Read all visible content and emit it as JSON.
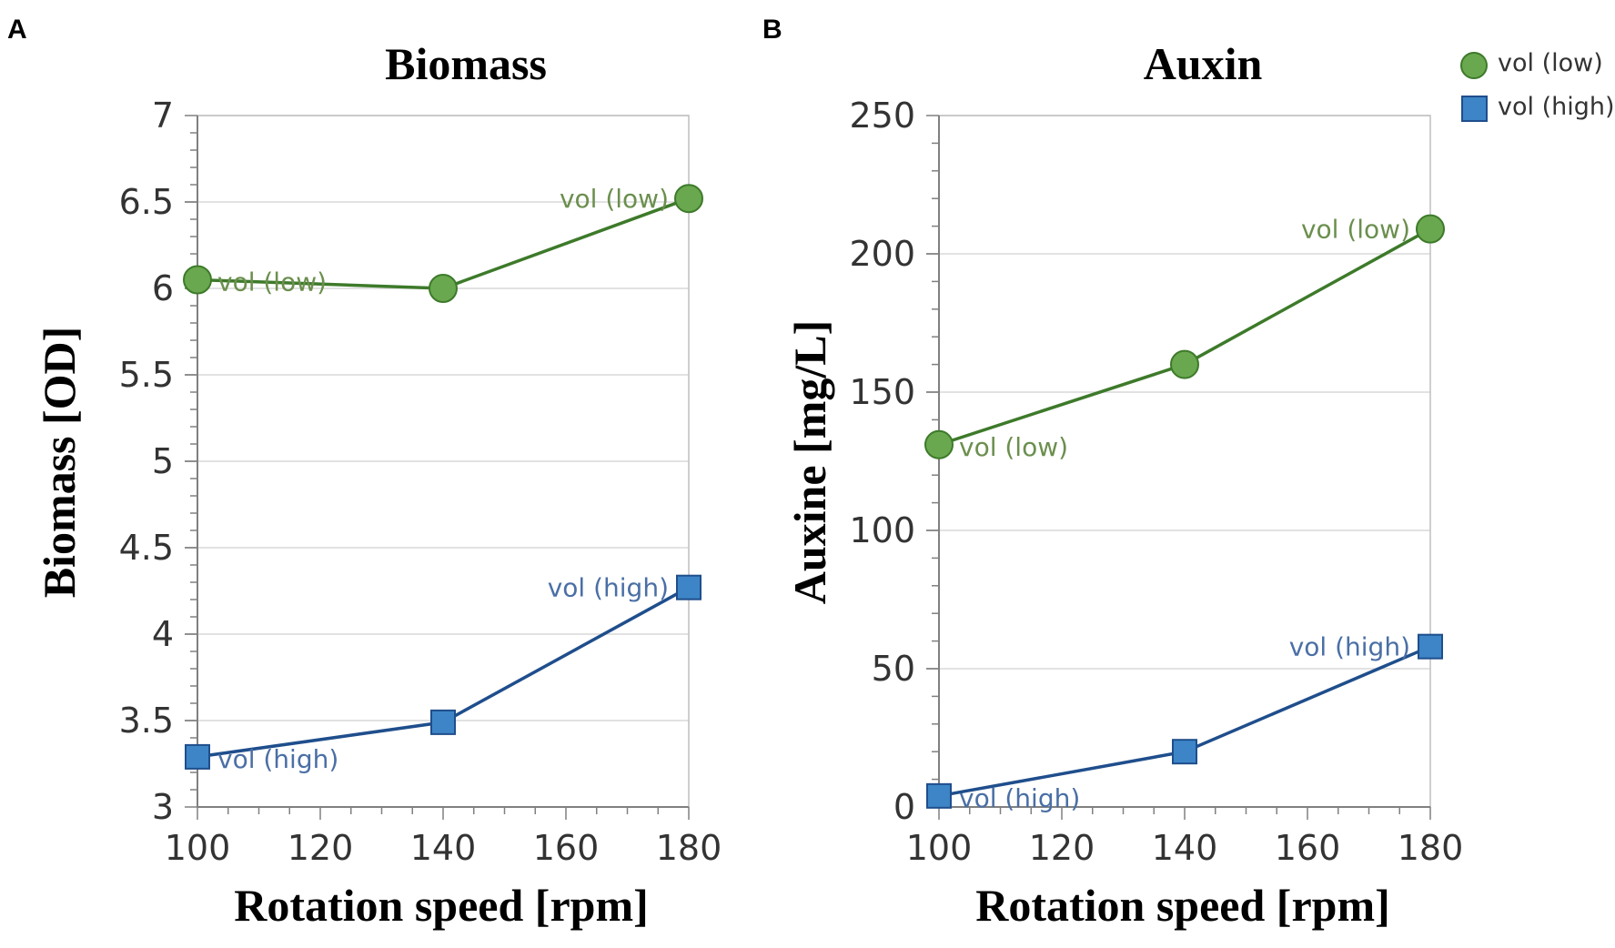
{
  "panels": [
    "A",
    "B"
  ],
  "legend": {
    "entries": [
      {
        "label": "vol (low)",
        "marker": "circle",
        "color": "#6aa84f",
        "stroke": "#3d7a2a"
      },
      {
        "label": "vol (high)",
        "marker": "square",
        "color": "#3d85c6",
        "stroke": "#1f4e8c"
      }
    ]
  },
  "chart_data": [
    {
      "type": "line",
      "panel": "A",
      "title": "Biomass",
      "xlabel": "Rotation speed [rpm]",
      "ylabel": "Biomass [OD]",
      "x": [
        100,
        140,
        180
      ],
      "xlim": [
        100,
        180
      ],
      "ylim": [
        3,
        7
      ],
      "xticks": [
        "100",
        "120",
        "140",
        "160",
        "180"
      ],
      "yticks": [
        "3",
        "3.5",
        "4",
        "4.5",
        "5",
        "5.5",
        "6",
        "6.5",
        "7"
      ],
      "grid": true,
      "series": [
        {
          "name": "vol (low)",
          "values": [
            6.05,
            6.0,
            6.52
          ],
          "color": "#3d7a2a",
          "marker": "circle",
          "data_labels": [
            "vol (low)",
            "",
            "vol (low)"
          ]
        },
        {
          "name": "vol (high)",
          "values": [
            3.29,
            3.49,
            4.27
          ],
          "color": "#1f4e8c",
          "marker": "square",
          "data_labels": [
            "vol (high)",
            "",
            "vol (high)"
          ]
        }
      ]
    },
    {
      "type": "line",
      "panel": "B",
      "title": "Auxin",
      "xlabel": "Rotation speed [rpm]",
      "ylabel": "Auxine [mg/L]",
      "x": [
        100,
        140,
        180
      ],
      "xlim": [
        100,
        180
      ],
      "ylim": [
        0,
        250
      ],
      "xticks": [
        "100",
        "120",
        "140",
        "160",
        "180"
      ],
      "yticks": [
        "0",
        "50",
        "100",
        "150",
        "200",
        "250"
      ],
      "grid": true,
      "series": [
        {
          "name": "vol (low)",
          "values": [
            131,
            160,
            209
          ],
          "color": "#3d7a2a",
          "marker": "circle",
          "data_labels": [
            "vol (low)",
            "",
            "vol (low)"
          ]
        },
        {
          "name": "vol (high)",
          "values": [
            4,
            20,
            58
          ],
          "color": "#1f4e8c",
          "marker": "square",
          "data_labels": [
            "vol (high)",
            "",
            "vol (high)"
          ]
        }
      ]
    }
  ]
}
